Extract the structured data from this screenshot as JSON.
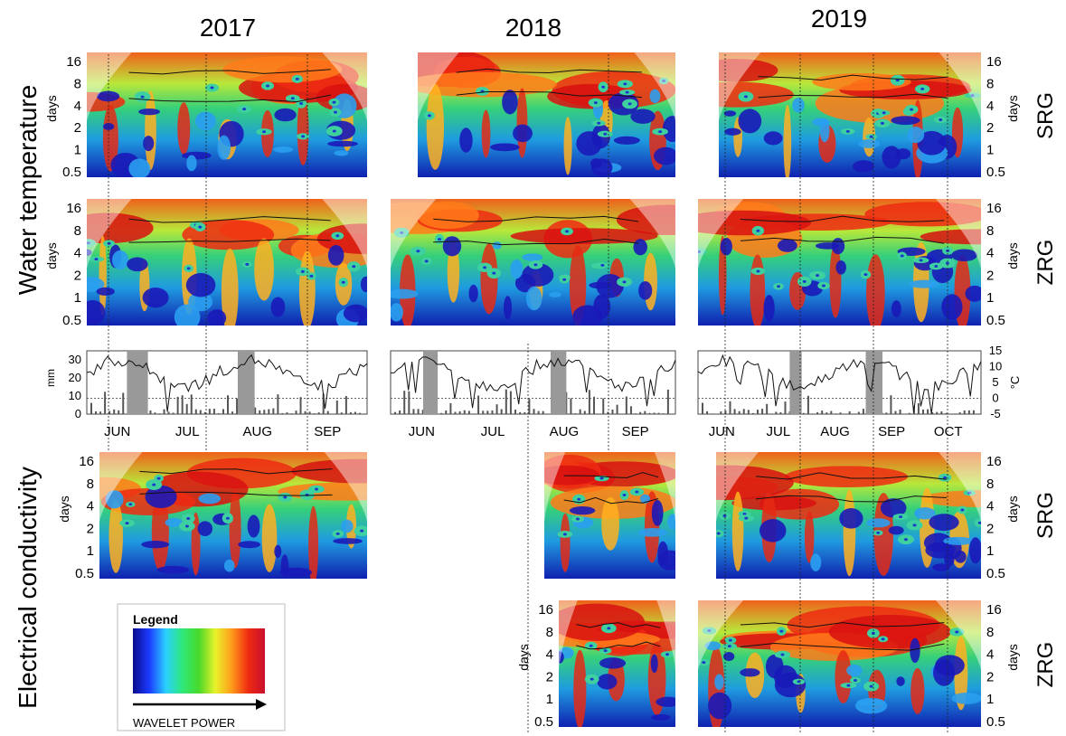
{
  "years": [
    "2017",
    "2018",
    "2019"
  ],
  "row_labels": {
    "water": "Water temperature",
    "ec": "Electrical conductivity"
  },
  "site_labels": {
    "srg": "SRG",
    "zrg": "ZRG"
  },
  "y_axis_title": "days",
  "y_ticks": [
    "16",
    "8",
    "4",
    "2",
    "1",
    "0.5"
  ],
  "months": {
    "2017": [
      "JUN",
      "JUL",
      "AUG",
      "SEP"
    ],
    "2018": [
      "JUN",
      "JUL",
      "AUG",
      "SEP"
    ],
    "2019": [
      "JUN",
      "JUL",
      "AUG",
      "SEP",
      "OCT"
    ]
  },
  "climate_axes": {
    "mm_label": "mm",
    "mm_ticks": [
      "30",
      "20",
      "10",
      "0"
    ],
    "c_label": "°C",
    "c_ticks": [
      "15",
      "10",
      "5",
      "0",
      "-5"
    ]
  },
  "legend": {
    "title": "Legend",
    "caption": "WAVELET POWER",
    "colors": [
      "#0b0b8c",
      "#1b3cff",
      "#2ad0ff",
      "#2ee87a",
      "#49d92a",
      "#e8f22a",
      "#ff9a1a",
      "#ee2a12",
      "#c8102e"
    ]
  },
  "chart_data": {
    "type": "heatmap",
    "description_fields": "wavelet power spectra (period in days vs time), with precipitation bars and air temperature lines",
    "period_axis_days": [
      0.5,
      1,
      2,
      4,
      8,
      16
    ],
    "panels": [
      {
        "variable": "Water temperature",
        "site": "SRG",
        "year": "2017"
      },
      {
        "variable": "Water temperature",
        "site": "SRG",
        "year": "2018"
      },
      {
        "variable": "Water temperature",
        "site": "SRG",
        "year": "2019"
      },
      {
        "variable": "Water temperature",
        "site": "ZRG",
        "year": "2017"
      },
      {
        "variable": "Water temperature",
        "site": "ZRG",
        "year": "2018"
      },
      {
        "variable": "Water temperature",
        "site": "ZRG",
        "year": "2019"
      },
      {
        "variable": "Electrical conductivity",
        "site": "SRG",
        "year": "2017"
      },
      {
        "variable": "Electrical conductivity",
        "site": "SRG",
        "year": "2018"
      },
      {
        "variable": "Electrical conductivity",
        "site": "SRG",
        "year": "2019"
      },
      {
        "variable": "Electrical conductivity",
        "site": "ZRG",
        "year": "2018"
      },
      {
        "variable": "Electrical conductivity",
        "site": "ZRG",
        "year": "2019"
      }
    ],
    "climate": {
      "precip_ylim": [
        0,
        35
      ],
      "temp_ylim": [
        -5,
        15
      ]
    }
  }
}
